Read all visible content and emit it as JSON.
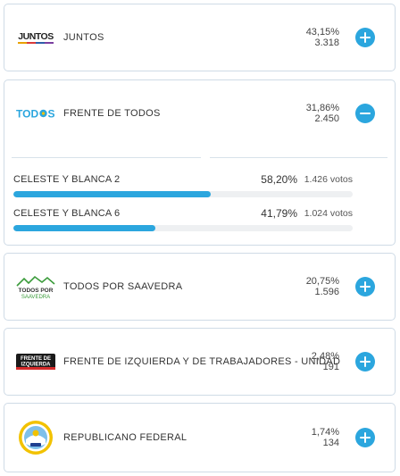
{
  "parties": [
    {
      "name": "JUNTOS",
      "logo_text": "JUNTOS",
      "percent": "43,15%",
      "votes": "3.318",
      "expanded": false
    },
    {
      "name": "FRENTE DE TODOS",
      "logo_text": "TODOS",
      "percent": "31,86%",
      "votes": "2.450",
      "expanded": true,
      "lists": [
        {
          "name": "CELESTE Y BLANCA 2",
          "percent": "58,20%",
          "votes": "1.426 votos",
          "share": 0.582
        },
        {
          "name": "CELESTE Y BLANCA 6",
          "percent": "41,79%",
          "votes": "1.024 votos",
          "share": 0.4179
        }
      ]
    },
    {
      "name": "TODOS POR SAAVEDRA",
      "logo_text": "TODOS POR SAAVEDRA",
      "percent": "20,75%",
      "votes": "1.596",
      "expanded": false
    },
    {
      "name": "FRENTE DE IZQUIERDA Y DE TRABAJADORES - UNIDAD",
      "logo_text": "FRENTE DE IZQUIERDA",
      "percent": "2,48%",
      "votes": "191",
      "expanded": false
    },
    {
      "name": "REPUBLICANO FEDERAL",
      "logo_text": "",
      "percent": "1,74%",
      "votes": "134",
      "expanded": false
    }
  ],
  "colors": {
    "accent": "#2ba6de",
    "border": "#cfdbe6"
  },
  "icons": {
    "expand": "plus-icon",
    "collapse": "minus-icon"
  }
}
